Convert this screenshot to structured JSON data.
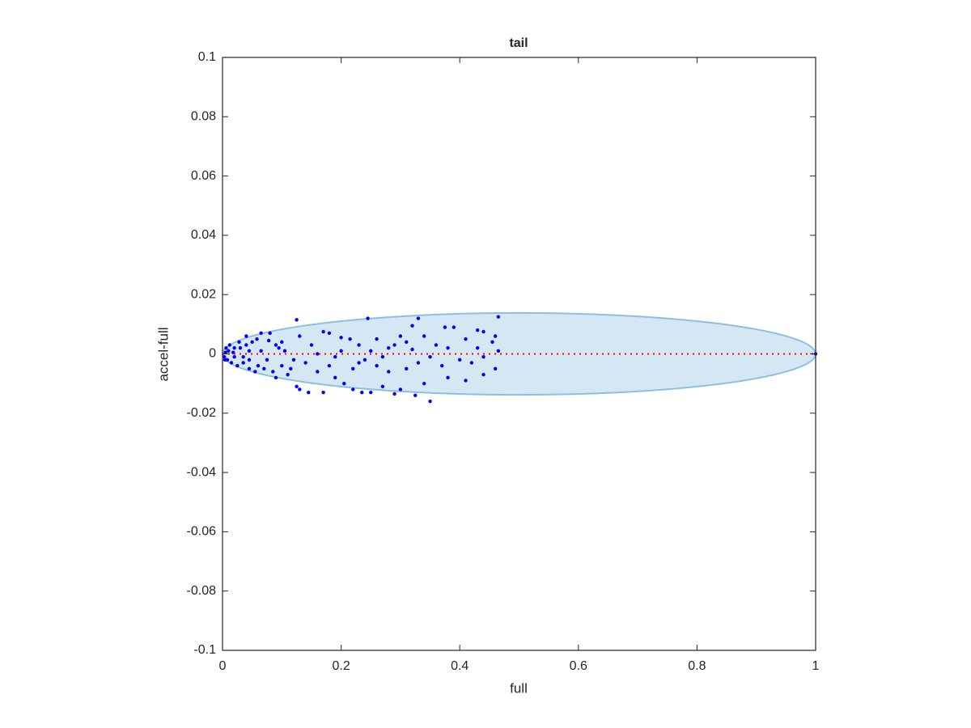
{
  "chart_data": {
    "type": "scatter",
    "title": "tail",
    "xlabel": "full",
    "ylabel": "accel-full",
    "xlim": [
      0,
      1
    ],
    "ylim": [
      -0.1,
      0.1
    ],
    "xticks": [
      0,
      0.2,
      0.4,
      0.6,
      0.8,
      1
    ],
    "yticks": [
      -0.1,
      -0.08,
      -0.06,
      -0.04,
      -0.02,
      0,
      0.02,
      0.04,
      0.06,
      0.08,
      0.1
    ],
    "grid": false,
    "ellipse": {
      "cx": 0.5,
      "cy": 0,
      "rx": 0.5,
      "ry": 0.0138,
      "fill": "#d6e7f4",
      "stroke": "#8dc0e0"
    },
    "hline": {
      "y": 0,
      "color": "#ff0000"
    },
    "series": [
      {
        "color": "#0000ff",
        "x": [
          0.125,
          0.245,
          0.33,
          0.465,
          0.32,
          0.375,
          0.39,
          0.43,
          0.44,
          0.17,
          0.18,
          0.065,
          0.08,
          0.13,
          0.2,
          0.215,
          0.26,
          0.3,
          0.34,
          0.41,
          0.46,
          0.455,
          0.36,
          0.29,
          0.23,
          0.15,
          0.1,
          0.09,
          0.05,
          0.04,
          0.03,
          0.02,
          0.01,
          0.005,
          0.003,
          0.008,
          0.015,
          0.025,
          0.035,
          0.045,
          0.055,
          0.06,
          0.07,
          0.085,
          0.1,
          0.11,
          0.125,
          0.13,
          0.145,
          0.17,
          0.19,
          0.205,
          0.22,
          0.235,
          0.25,
          0.27,
          0.29,
          0.3,
          0.325,
          0.35,
          0.34,
          0.38,
          0.41,
          0.44,
          0.46,
          0.42,
          0.4,
          0.37,
          0.33,
          0.31,
          0.28,
          0.26,
          0.24,
          0.22,
          0.18,
          0.16,
          0.14,
          0.12,
          0.105,
          0.095,
          0.075,
          0.065,
          0.045,
          0.035,
          0.02,
          0.012,
          0.028,
          0.058,
          0.078,
          0.2,
          0.25,
          0.28,
          0.32,
          0.38,
          0.43,
          0.465,
          0.44,
          0.35,
          0.27,
          0.19,
          0.16,
          0.23,
          0.31,
          0.045,
          0.018,
          0.006,
          0.004,
          0.04,
          0.09,
          0.115,
          1
        ],
        "values": [
          0.0115,
          0.012,
          0.012,
          0.0125,
          0.0095,
          0.009,
          0.009,
          0.008,
          0.0075,
          0.0075,
          0.007,
          0.007,
          0.007,
          0.006,
          0.0055,
          0.005,
          0.005,
          0.006,
          0.006,
          0.005,
          0.006,
          0.004,
          0.003,
          0.003,
          0.003,
          0.003,
          0.004,
          0.003,
          0.004,
          0.003,
          0.002,
          0.002,
          0.001,
          0.0005,
          -0.001,
          -0.002,
          -0.003,
          -0.004,
          -0.003,
          -0.005,
          -0.006,
          -0.004,
          -0.005,
          -0.006,
          -0.004,
          -0.007,
          -0.011,
          -0.012,
          -0.013,
          -0.013,
          -0.008,
          -0.01,
          -0.012,
          -0.013,
          -0.013,
          -0.011,
          -0.0135,
          -0.012,
          -0.014,
          -0.016,
          -0.01,
          -0.008,
          -0.009,
          -0.007,
          -0.005,
          -0.003,
          -0.002,
          -0.004,
          -0.003,
          -0.005,
          -0.006,
          -0.004,
          -0.002,
          -0.005,
          -0.004,
          -0.006,
          -0.003,
          -0.002,
          0.001,
          0.002,
          -0.002,
          0.001,
          0.001,
          -0.001,
          -0.001,
          0.003,
          0.004,
          0.005,
          0.0045,
          0.001,
          0.001,
          0.002,
          0.0015,
          0.002,
          0.002,
          0.001,
          -0.001,
          -0.001,
          -0.001,
          -0.001,
          0,
          -0.003,
          0.004,
          -0.002,
          0.0005,
          0.002,
          -0.002,
          0.006,
          -0.008,
          -0.005,
          0
        ]
      }
    ]
  }
}
